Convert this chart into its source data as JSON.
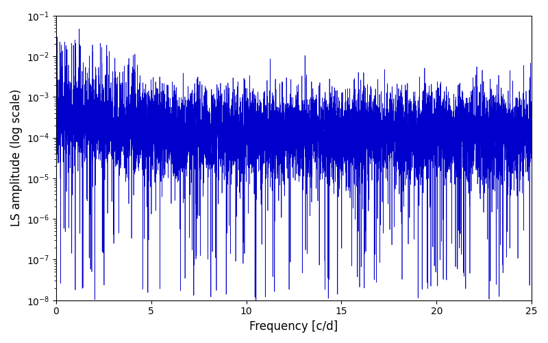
{
  "xlabel": "Frequency [c/d]",
  "ylabel": "LS amplitude (log scale)",
  "xlim": [
    0,
    25
  ],
  "ylim": [
    1e-08,
    0.1
  ],
  "xticks": [
    0,
    5,
    10,
    15,
    20,
    25
  ],
  "line_color": "#0000cc",
  "line_width": 0.5,
  "background_color": "#ffffff",
  "figsize": [
    8.0,
    5.0
  ],
  "dpi": 100,
  "seed": 12345,
  "n_points": 8000,
  "freq_max": 25.0
}
